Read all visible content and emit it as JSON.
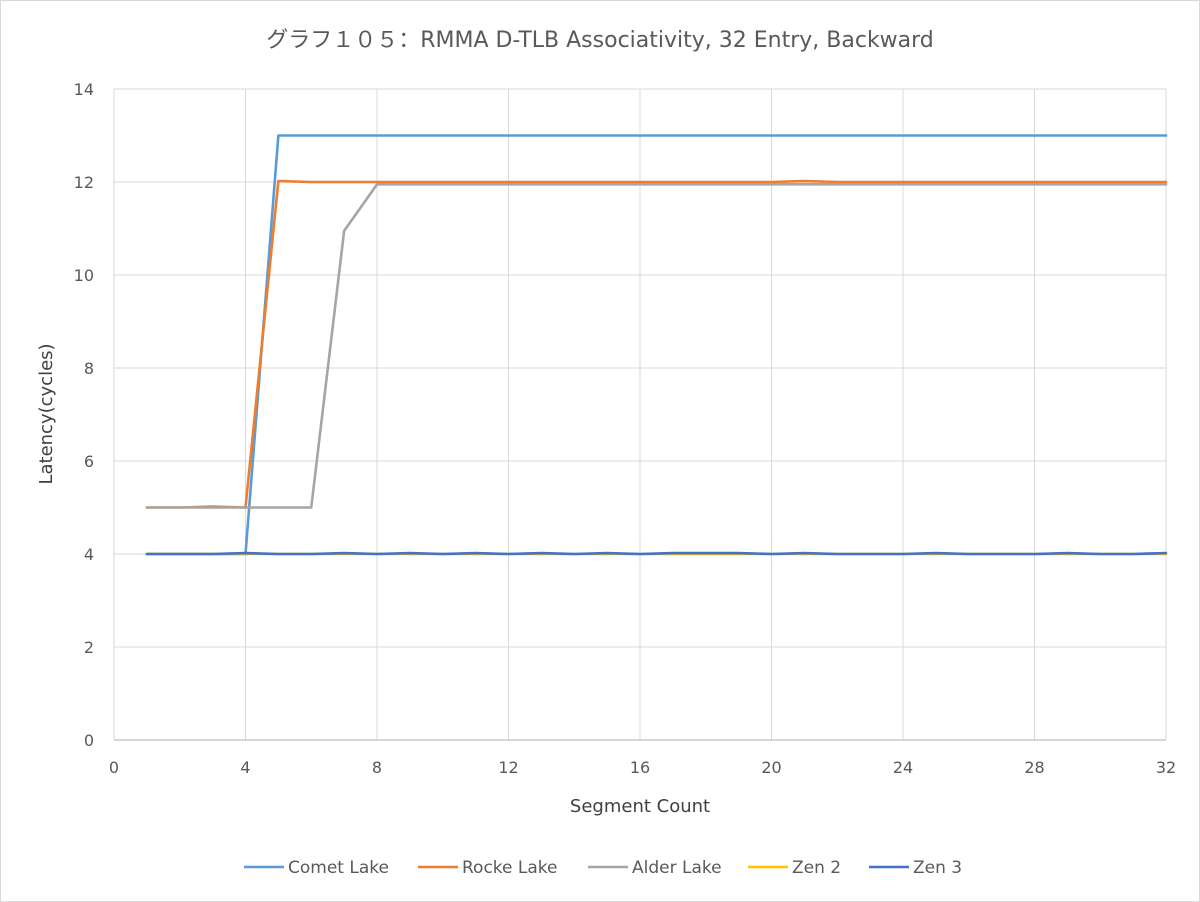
{
  "chart_data": {
    "type": "line",
    "title": "グラフ１０５：RMMA D-TLB Associativity, 32 Entry, Backward",
    "xlabel": "Segment Count",
    "ylabel": "Latency(cycles)",
    "xlim": [
      0,
      32
    ],
    "ylim": [
      0,
      14
    ],
    "x_ticks": [
      0,
      4,
      8,
      12,
      16,
      20,
      24,
      28,
      32
    ],
    "y_ticks": [
      0,
      2,
      4,
      6,
      8,
      10,
      12,
      14
    ],
    "grid": true,
    "legend_position": "bottom",
    "x": [
      1,
      2,
      3,
      4,
      5,
      6,
      7,
      8,
      9,
      10,
      11,
      12,
      13,
      14,
      15,
      16,
      17,
      18,
      19,
      20,
      21,
      22,
      23,
      24,
      25,
      26,
      27,
      28,
      29,
      30,
      31,
      32
    ],
    "series": [
      {
        "name": "Comet Lake",
        "color": "#5B9BD5",
        "values": [
          4,
          4,
          4,
          4,
          13,
          13,
          13,
          13,
          13,
          13,
          13,
          13,
          13,
          13,
          13,
          13,
          13,
          13,
          13,
          13,
          13,
          13,
          13,
          13,
          13,
          13,
          13,
          13,
          13,
          13,
          13,
          13
        ]
      },
      {
        "name": "Rocke Lake",
        "color": "#ED7D31",
        "values": [
          5,
          5,
          5.02,
          5,
          12.02,
          12,
          12,
          12,
          12,
          12,
          12,
          12,
          12,
          12,
          12,
          12,
          12,
          12,
          12,
          12,
          12.02,
          12,
          12,
          12,
          12,
          12,
          12,
          12,
          12,
          12,
          12,
          12
        ]
      },
      {
        "name": "Alder Lake",
        "color": "#A5A5A5",
        "values": [
          5,
          5,
          5,
          5,
          5,
          5,
          10.95,
          11.95,
          11.95,
          11.95,
          11.95,
          11.95,
          11.95,
          11.95,
          11.95,
          11.95,
          11.95,
          11.95,
          11.95,
          11.95,
          11.95,
          11.95,
          11.95,
          11.95,
          11.95,
          11.95,
          11.95,
          11.95,
          11.95,
          11.95,
          11.95,
          11.95
        ]
      },
      {
        "name": "Zen 2",
        "color": "#FFC000",
        "values": [
          4,
          4,
          4,
          4,
          4,
          4,
          4,
          4,
          4,
          4,
          4,
          4,
          4,
          4,
          4,
          4,
          4,
          4,
          4,
          4,
          4,
          4,
          4,
          4,
          4,
          4,
          4,
          4,
          4,
          4,
          4,
          4
        ]
      },
      {
        "name": "Zen 3",
        "color": "#4472C4",
        "values": [
          4,
          4,
          4,
          4.02,
          4,
          4,
          4.02,
          4,
          4.02,
          4,
          4.02,
          4,
          4.02,
          4,
          4.02,
          4,
          4.02,
          4.02,
          4.02,
          4,
          4.02,
          4,
          4,
          4,
          4.02,
          4,
          4,
          4,
          4.02,
          4,
          4,
          4.02
        ]
      }
    ]
  }
}
